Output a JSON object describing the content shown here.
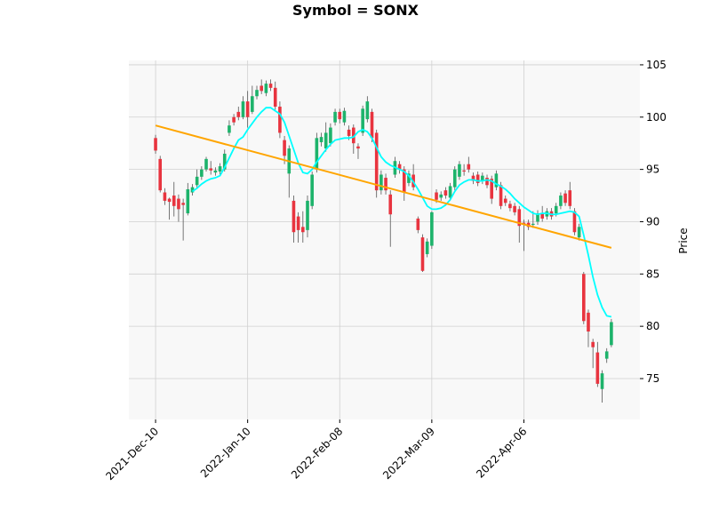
{
  "chart_data": {
    "type": "candlestick",
    "title": "Symbol = SONX",
    "y_label": "Price",
    "x": [
      0,
      1,
      2,
      3,
      4,
      5,
      6,
      7,
      8,
      9,
      10,
      11,
      12,
      13,
      14,
      15,
      16,
      17,
      18,
      19,
      20,
      21,
      22,
      23,
      24,
      25,
      26,
      27,
      28,
      29,
      30,
      31,
      32,
      33,
      34,
      35,
      36,
      37,
      38,
      39,
      40,
      41,
      42,
      43,
      44,
      45,
      46,
      47,
      48,
      49,
      50,
      51,
      52,
      53,
      54,
      55,
      56,
      57,
      58,
      59,
      60,
      61,
      62,
      63,
      64,
      65,
      66,
      67,
      68,
      69,
      70,
      71,
      72,
      73,
      74,
      75,
      76,
      77,
      78,
      79,
      80,
      81,
      82,
      83,
      84,
      85,
      86,
      87,
      88,
      89,
      90,
      91,
      92,
      93,
      94,
      95,
      96,
      97,
      98,
      99
    ],
    "open": [
      98.0,
      96.0,
      92.8,
      92.2,
      92.5,
      92.2,
      91.8,
      90.8,
      92.8,
      93.5,
      94.3,
      95.0,
      95.1,
      94.7,
      94.8,
      95.0,
      98.5,
      100.0,
      100.5,
      100.0,
      101.5,
      100.5,
      102.0,
      103.0,
      102.3,
      103.2,
      102.8,
      101.0,
      97.8,
      94.6,
      92.0,
      90.5,
      89.5,
      89.2,
      91.5,
      95.0,
      97.6,
      97.0,
      97.5,
      99.5,
      100.5,
      99.5,
      98.8,
      99.0,
      97.2,
      98.5,
      99.8,
      100.5,
      98.5,
      93.0,
      94.2,
      92.6,
      94.5,
      95.5,
      95.0,
      93.7,
      94.5,
      90.3,
      88.5,
      86.9,
      87.7,
      92.8,
      92.3,
      93.0,
      92.3,
      93.3,
      94.3,
      94.9,
      95.5,
      94.4,
      94.5,
      93.9,
      94.2,
      94.1,
      93.3,
      93.5,
      92.2,
      91.7,
      91.5,
      91.2,
      89.9,
      89.9,
      89.7,
      90.0,
      90.8,
      90.5,
      91.0,
      90.8,
      91.5,
      92.7,
      93.0,
      91.0,
      88.5,
      85.0,
      81.3,
      78.5,
      77.5,
      74.0,
      76.9,
      78.2
    ],
    "high": [
      98.3,
      96.3,
      93.2,
      92.3,
      93.8,
      92.6,
      92.2,
      93.7,
      93.6,
      95.0,
      95.3,
      96.2,
      95.8,
      95.2,
      95.6,
      96.9,
      99.7,
      100.3,
      101.0,
      102.0,
      102.5,
      103.0,
      103.0,
      103.6,
      103.5,
      103.6,
      103.4,
      101.5,
      98.2,
      97.3,
      92.5,
      90.9,
      91.0,
      92.5,
      94.8,
      98.5,
      98.5,
      99.5,
      99.4,
      100.8,
      100.8,
      100.9,
      99.2,
      99.3,
      97.5,
      101.1,
      102.0,
      100.8,
      98.8,
      94.9,
      94.6,
      93.0,
      96.2,
      95.8,
      95.3,
      94.9,
      95.5,
      90.5,
      88.8,
      88.4,
      91.0,
      93.1,
      92.9,
      93.3,
      93.7,
      95.3,
      95.8,
      95.5,
      96.2,
      94.7,
      94.8,
      94.7,
      94.5,
      94.4,
      94.9,
      93.8,
      92.5,
      92.0,
      91.8,
      91.5,
      90.2,
      90.2,
      91.0,
      91.1,
      91.5,
      91.3,
      91.3,
      91.8,
      92.8,
      93.0,
      93.8,
      91.3,
      89.8,
      85.2,
      81.6,
      78.8,
      78.5,
      75.8,
      77.9,
      80.7
    ],
    "low": [
      96.5,
      92.8,
      91.6,
      90.2,
      90.5,
      90.0,
      88.2,
      90.6,
      92.5,
      93.2,
      94.0,
      94.8,
      94.5,
      94.4,
      94.5,
      94.8,
      98.2,
      99.2,
      99.7,
      99.8,
      99.0,
      100.3,
      101.7,
      102.2,
      102.0,
      102.5,
      100.7,
      98.0,
      95.5,
      92.3,
      88.0,
      88.0,
      88.0,
      88.5,
      91.2,
      94.7,
      97.2,
      96.7,
      97.2,
      99.2,
      99.4,
      99.2,
      97.8,
      96.5,
      96.0,
      98.2,
      99.5,
      97.6,
      92.3,
      92.6,
      92.6,
      87.6,
      94.2,
      94.6,
      92.0,
      93.4,
      93.0,
      88.9,
      85.2,
      86.6,
      87.4,
      91.8,
      92.0,
      92.2,
      92.0,
      93.0,
      94.0,
      94.4,
      94.7,
      93.6,
      93.4,
      93.6,
      93.2,
      91.7,
      93.0,
      91.2,
      91.5,
      91.0,
      90.6,
      88.0,
      87.2,
      89.2,
      89.4,
      89.7,
      90.0,
      90.2,
      90.2,
      90.5,
      91.2,
      91.5,
      91.2,
      88.7,
      88.2,
      80.2,
      78.0,
      76.0,
      74.2,
      72.7,
      76.5,
      78.0
    ],
    "close": [
      96.8,
      93.0,
      92.0,
      91.9,
      91.5,
      91.2,
      91.6,
      93.1,
      93.3,
      94.3,
      95.0,
      96.0,
      94.9,
      94.9,
      95.3,
      96.5,
      99.2,
      99.5,
      100.0,
      101.5,
      100.0,
      102.0,
      102.6,
      102.5,
      103.2,
      102.8,
      101.0,
      98.5,
      96.3,
      97.0,
      89.0,
      89.2,
      89.0,
      92.0,
      94.5,
      98.0,
      98.1,
      98.5,
      99.0,
      100.5,
      99.8,
      100.6,
      98.2,
      97.5,
      97.0,
      100.8,
      101.5,
      98.0,
      93.0,
      94.5,
      93.0,
      90.7,
      95.8,
      95.0,
      92.8,
      94.6,
      93.3,
      89.2,
      85.3,
      88.1,
      90.9,
      92.1,
      92.6,
      92.5,
      93.4,
      95.0,
      95.5,
      94.8,
      95.0,
      93.9,
      93.7,
      94.4,
      93.5,
      92.2,
      94.6,
      91.5,
      91.8,
      91.3,
      90.9,
      89.6,
      89.8,
      89.5,
      89.8,
      90.8,
      90.3,
      91.0,
      90.5,
      91.5,
      92.5,
      91.8,
      91.5,
      89.0,
      89.5,
      80.5,
      79.5,
      78.0,
      74.5,
      75.5,
      77.6,
      80.4
    ],
    "up_color": "#1db36b",
    "down_color": "#e8343f",
    "moving_average": {
      "color": "#00ffff",
      "values": [
        null,
        null,
        null,
        null,
        null,
        null,
        null,
        null,
        92.9,
        93.2,
        93.6,
        93.9,
        94.1,
        94.2,
        94.4,
        95.2,
        96.1,
        97.0,
        97.8,
        98.1,
        98.8,
        99.4,
        100.0,
        100.5,
        100.9,
        100.9,
        100.6,
        100.3,
        99.5,
        98.2,
        96.9,
        95.6,
        94.7,
        94.6,
        95.0,
        95.7,
        96.3,
        96.9,
        97.4,
        97.8,
        97.9,
        98.0,
        98.0,
        98.1,
        98.6,
        98.8,
        98.6,
        98.0,
        97.1,
        96.2,
        95.7,
        95.4,
        95.2,
        95.0,
        94.8,
        94.4,
        93.8,
        93.1,
        92.3,
        91.5,
        91.2,
        91.2,
        91.3,
        91.6,
        92.1,
        92.9,
        93.5,
        93.8,
        94.0,
        94.0,
        93.9,
        93.9,
        94.0,
        93.9,
        93.6,
        93.4,
        93.1,
        92.7,
        92.2,
        91.8,
        91.4,
        91.1,
        90.8,
        90.7,
        90.8,
        90.8,
        90.7,
        90.7,
        90.8,
        90.9,
        91.0,
        90.9,
        90.5,
        88.7,
        86.8,
        84.7,
        83.0,
        81.8,
        81.0,
        80.9
      ]
    },
    "trend_line": {
      "color": "#ffa500",
      "x": [
        0,
        99
      ],
      "values": [
        99.2,
        87.5
      ]
    },
    "xlim": [
      -5.8,
      105.2
    ],
    "ylim": [
      71.09,
      105.42
    ],
    "xticks": [
      {
        "value": 0,
        "label": "2021-Dec-10"
      },
      {
        "value": 20,
        "label": "2022-Jan-10"
      },
      {
        "value": 40,
        "label": "2022-Feb-08"
      },
      {
        "value": 60,
        "label": "2022-Mar-09"
      },
      {
        "value": 80,
        "label": "2022-Apr-06"
      }
    ],
    "yticks": [
      75,
      80,
      85,
      90,
      95,
      100,
      105
    ],
    "grid": true
  }
}
